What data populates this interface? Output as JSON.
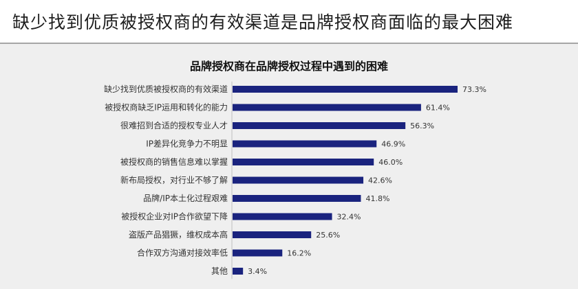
{
  "page": {
    "title": "缺少找到优质被授权商的有效渠道是品牌授权商面临的最大困难"
  },
  "chart_data": {
    "type": "bar",
    "orientation": "horizontal",
    "title": "品牌授权商在品牌授权过程中遇到的困难",
    "xlabel": "",
    "ylabel": "",
    "unit": "%",
    "xlim": [
      0,
      80
    ],
    "grid": false,
    "legend": "none",
    "bar_color": "#1a237e",
    "categories": [
      "缺少找到优质被授权商的有效渠道",
      "被授权商缺乏IP运用和转化的能力",
      "很难招到合适的授权专业人才",
      "IP差异化竞争力不明显",
      "被授权商的销售信息难以掌握",
      "新布局授权，对行业不够了解",
      "品牌/IP本土化过程艰难",
      "被授权企业对IP合作欲望下降",
      "盗版产品猖獗，维权成本高",
      "合作双方沟通对接效率低",
      "其他"
    ],
    "values": [
      73.3,
      61.4,
      56.3,
      46.9,
      46.0,
      42.6,
      41.8,
      32.4,
      25.6,
      16.2,
      3.4
    ],
    "value_labels": [
      "73.3%",
      "61.4%",
      "56.3%",
      "46.9%",
      "46.0%",
      "42.6%",
      "41.8%",
      "32.4%",
      "25.6%",
      "16.2%",
      "3.4%"
    ]
  }
}
